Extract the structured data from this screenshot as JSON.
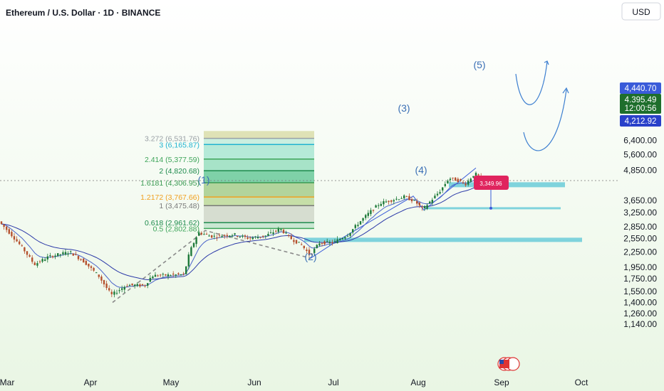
{
  "header": {
    "symbol_title": "Ethereum / U.S. Dollar · 1D · BINANCE",
    "currency_button": "USD"
  },
  "colors": {
    "background_start": "#ffffff",
    "background_end": "#e9f6e4",
    "candle_up": "#1e7a3a",
    "candle_down": "#b5512e",
    "ma_fast": "#4a63c9",
    "ma_slow": "#2c3aa8",
    "zone_line": "#7fd3dc",
    "current_price_badge": "#3a5bd9",
    "countdown_badge": "#1e6e2c",
    "support_badge": "#2940c9",
    "pink_label": "#e0245e",
    "arrow": "#3d7fd0"
  },
  "chart_data": {
    "type": "candlestick",
    "title": "Ethereum / U.S. Dollar · 1D · BINANCE",
    "y_scale": "log",
    "ylim": [
      1080,
      7000
    ],
    "y_ticks": [
      {
        "value": 6400,
        "label": "6,400.00"
      },
      {
        "value": 5600,
        "label": "5,600.00"
      },
      {
        "value": 4850,
        "label": "4,850.00"
      },
      {
        "value": 3650,
        "label": "3,650.00"
      },
      {
        "value": 3250,
        "label": "3,250.00"
      },
      {
        "value": 2850,
        "label": "2,850.00"
      },
      {
        "value": 2550,
        "label": "2,550.00"
      },
      {
        "value": 2250,
        "label": "2,250.00"
      },
      {
        "value": 1950,
        "label": "1,950.00"
      },
      {
        "value": 1750,
        "label": "1,750.00"
      },
      {
        "value": 1550,
        "label": "1,550.00"
      },
      {
        "value": 1400,
        "label": "1,400.00"
      },
      {
        "value": 1260,
        "label": "1,260.00"
      },
      {
        "value": 1140,
        "label": "1,140.00"
      }
    ],
    "x_ticks": [
      "Mar",
      "Apr",
      "May",
      "Jun",
      "Jul",
      "Aug",
      "Sep",
      "Oct"
    ],
    "price_badges": [
      {
        "value": 4440.7,
        "label": "4,440.70",
        "kind": "current"
      },
      {
        "value": 4395.49,
        "label": "4,395.49",
        "kind": "last"
      },
      {
        "value": 4230,
        "label": "12:00:56",
        "kind": "countdown"
      },
      {
        "value": 4212.92,
        "label": "4,212.92",
        "kind": "support"
      }
    ],
    "fibonacci": [
      {
        "ratio": "3.272",
        "value": 6531.76,
        "label": "3.272 (6,531.76)",
        "color": "#9aa0a6"
      },
      {
        "ratio": "3",
        "value": 6165.87,
        "label": "3 (6,165.87)",
        "color": "#1fb3d0"
      },
      {
        "ratio": "2.414",
        "value": 5377.59,
        "label": "2.414 (5,377.59)",
        "color": "#3ea55a"
      },
      {
        "ratio": "2",
        "value": 4820.68,
        "label": "2 (4,820.68)",
        "color": "#1d8a4c"
      },
      {
        "ratio": "1.6181",
        "value": 4306.95,
        "label": "1.6181 (4,306.95)",
        "color": "#3a9a52"
      },
      {
        "ratio": "1.2172",
        "value": 3767.66,
        "label": "1.2172 (3,767.66)",
        "color": "#f0a020"
      },
      {
        "ratio": "1",
        "value": 3475.48,
        "label": "1 (3,475.48)",
        "color": "#7a7a7a"
      },
      {
        "ratio": "0.618",
        "value": 2961.62,
        "label": "0.618 (2,961.62)",
        "color": "#1d8a4c"
      },
      {
        "ratio": "0.5",
        "value": 2802.88,
        "label": "0.5 (2,802.88)",
        "color": "#3ea55a"
      }
    ],
    "wave_labels": [
      "(1)",
      "(2)",
      "(3)",
      "(4)",
      "(5)"
    ],
    "annotation_price": "3,349.96"
  }
}
